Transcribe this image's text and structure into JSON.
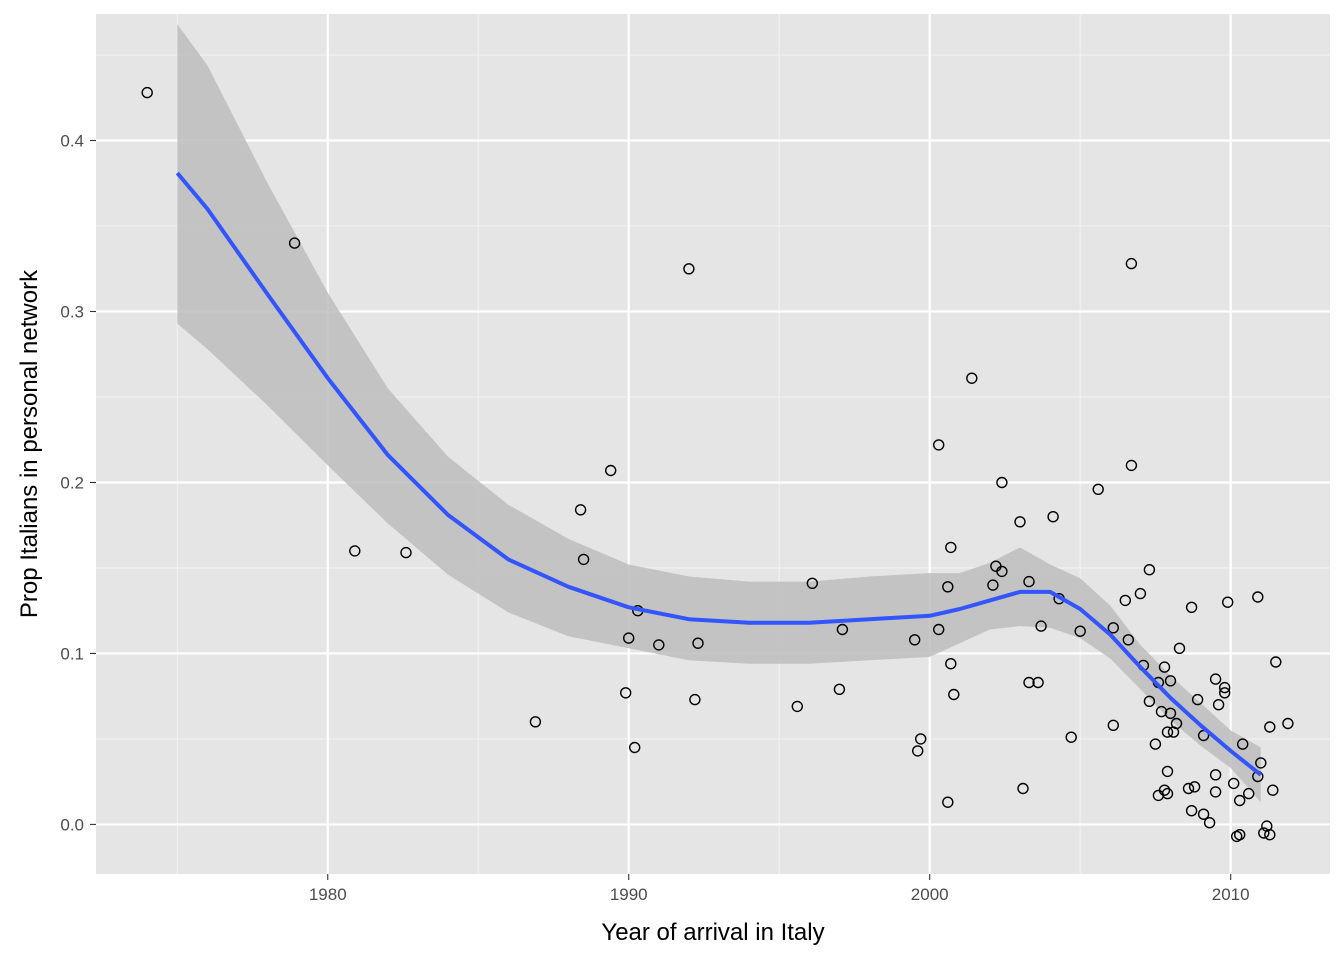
{
  "chart_data": {
    "type": "scatter",
    "title": "",
    "xlabel": "Year of arrival in Italy",
    "ylabel": "Prop Italians in personal network",
    "xlim": [
      1972.3,
      2013.3
    ],
    "ylim": [
      -0.029,
      0.474
    ],
    "x_ticks": [
      1980,
      1990,
      2000,
      2010
    ],
    "y_ticks": [
      0.0,
      0.1,
      0.2,
      0.3,
      0.4
    ],
    "x_tick_labels": [
      "1980",
      "1990",
      "2000",
      "2010"
    ],
    "y_tick_labels": [
      "0.0",
      "0.1",
      "0.2",
      "0.3",
      "0.4"
    ],
    "grid": true,
    "legend": "none",
    "colors": {
      "panel": "#e5e5e5",
      "grid": "#ffffff",
      "smooth_line": "#3355ff",
      "ribbon": "#bdbdbd",
      "points": "#000000"
    },
    "points": [
      [
        1974.0,
        0.428
      ],
      [
        1978.9,
        0.34
      ],
      [
        1980.9,
        0.16
      ],
      [
        1982.6,
        0.159
      ],
      [
        1986.9,
        0.06
      ],
      [
        1988.4,
        0.184
      ],
      [
        1988.5,
        0.155
      ],
      [
        1989.4,
        0.207
      ],
      [
        1989.9,
        0.077
      ],
      [
        1990.0,
        0.109
      ],
      [
        1990.2,
        0.045
      ],
      [
        1990.3,
        0.125
      ],
      [
        1991.0,
        0.105
      ],
      [
        1992.0,
        0.325
      ],
      [
        1992.2,
        0.073
      ],
      [
        1992.3,
        0.106
      ],
      [
        1995.6,
        0.069
      ],
      [
        1996.1,
        0.141
      ],
      [
        1997.0,
        0.079
      ],
      [
        1997.1,
        0.114
      ],
      [
        1999.5,
        0.108
      ],
      [
        1999.6,
        0.043
      ],
      [
        1999.7,
        0.05
      ],
      [
        2000.3,
        0.222
      ],
      [
        2000.3,
        0.114
      ],
      [
        2000.6,
        0.013
      ],
      [
        2000.6,
        0.139
      ],
      [
        2000.7,
        0.162
      ],
      [
        2000.7,
        0.094
      ],
      [
        2000.8,
        0.076
      ],
      [
        2001.4,
        0.261
      ],
      [
        2002.1,
        0.14
      ],
      [
        2002.2,
        0.151
      ],
      [
        2002.4,
        0.2
      ],
      [
        2002.4,
        0.148
      ],
      [
        2003.0,
        0.177
      ],
      [
        2003.1,
        0.021
      ],
      [
        2003.3,
        0.142
      ],
      [
        2003.3,
        0.083
      ],
      [
        2003.6,
        0.083
      ],
      [
        2003.7,
        0.116
      ],
      [
        2004.1,
        0.18
      ],
      [
        2004.3,
        0.132
      ],
      [
        2004.7,
        0.051
      ],
      [
        2005.0,
        0.113
      ],
      [
        2005.6,
        0.196
      ],
      [
        2006.1,
        0.058
      ],
      [
        2006.1,
        0.115
      ],
      [
        2006.5,
        0.131
      ],
      [
        2006.6,
        0.108
      ],
      [
        2006.7,
        0.328
      ],
      [
        2006.7,
        0.21
      ],
      [
        2007.0,
        0.135
      ],
      [
        2007.1,
        0.093
      ],
      [
        2007.3,
        0.072
      ],
      [
        2007.3,
        0.149
      ],
      [
        2007.5,
        0.047
      ],
      [
        2007.6,
        0.017
      ],
      [
        2007.6,
        0.083
      ],
      [
        2007.7,
        0.066
      ],
      [
        2007.8,
        0.02
      ],
      [
        2007.8,
        0.092
      ],
      [
        2007.9,
        0.018
      ],
      [
        2007.9,
        0.054
      ],
      [
        2007.9,
        0.031
      ],
      [
        2008.0,
        0.084
      ],
      [
        2008.0,
        0.065
      ],
      [
        2008.1,
        0.054
      ],
      [
        2008.2,
        0.059
      ],
      [
        2008.3,
        0.103
      ],
      [
        2008.6,
        0.021
      ],
      [
        2008.7,
        0.008
      ],
      [
        2008.7,
        0.127
      ],
      [
        2008.8,
        0.022
      ],
      [
        2008.9,
        0.073
      ],
      [
        2009.1,
        0.052
      ],
      [
        2009.1,
        0.006
      ],
      [
        2009.3,
        0.001
      ],
      [
        2009.5,
        0.085
      ],
      [
        2009.5,
        0.029
      ],
      [
        2009.5,
        0.019
      ],
      [
        2009.6,
        0.07
      ],
      [
        2009.8,
        0.08
      ],
      [
        2009.8,
        0.077
      ],
      [
        2009.9,
        0.13
      ],
      [
        2010.1,
        0.024
      ],
      [
        2010.2,
        -0.007
      ],
      [
        2010.3,
        -0.006
      ],
      [
        2010.3,
        0.014
      ],
      [
        2010.4,
        0.047
      ],
      [
        2010.6,
        0.018
      ],
      [
        2010.9,
        0.133
      ],
      [
        2010.9,
        0.028
      ],
      [
        2011.0,
        0.036
      ],
      [
        2011.1,
        -0.005
      ],
      [
        2011.2,
        -0.001
      ],
      [
        2011.3,
        -0.006
      ],
      [
        2011.3,
        0.057
      ],
      [
        2011.4,
        0.02
      ],
      [
        2011.5,
        0.095
      ],
      [
        2011.9,
        0.059
      ]
    ],
    "smooth": {
      "x": [
        1975.0,
        1976.0,
        1978.0,
        1980.0,
        1982.0,
        1984.0,
        1986.0,
        1988.0,
        1990.0,
        1992.0,
        1994.0,
        1996.0,
        1998.0,
        2000.0,
        2001.0,
        2002.0,
        2003.0,
        2004.0,
        2005.0,
        2006.0,
        2007.0,
        2008.0,
        2009.0,
        2010.0,
        2011.0
      ],
      "y": [
        0.381,
        0.36,
        0.31,
        0.261,
        0.216,
        0.181,
        0.155,
        0.139,
        0.127,
        0.12,
        0.118,
        0.118,
        0.12,
        0.122,
        0.126,
        0.131,
        0.136,
        0.136,
        0.126,
        0.111,
        0.092,
        0.074,
        0.058,
        0.043,
        0.029
      ],
      "lower": [
        0.293,
        0.278,
        0.245,
        0.21,
        0.176,
        0.146,
        0.124,
        0.11,
        0.103,
        0.096,
        0.094,
        0.094,
        0.096,
        0.098,
        0.106,
        0.114,
        0.116,
        0.115,
        0.109,
        0.097,
        0.079,
        0.061,
        0.046,
        0.033,
        0.013
      ],
      "upper": [
        0.468,
        0.444,
        0.375,
        0.311,
        0.255,
        0.215,
        0.187,
        0.167,
        0.152,
        0.145,
        0.142,
        0.142,
        0.145,
        0.147,
        0.147,
        0.153,
        0.162,
        0.152,
        0.144,
        0.128,
        0.105,
        0.087,
        0.071,
        0.055,
        0.045
      ]
    }
  }
}
